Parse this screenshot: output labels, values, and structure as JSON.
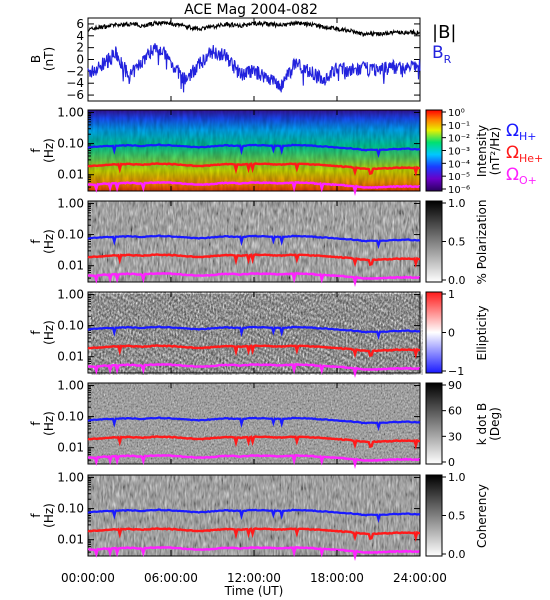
{
  "title": "ACE Mag 2004-082",
  "colors": {
    "bmag": "#000000",
    "br": "#2222dd",
    "h_plus": "#1a1aff",
    "he_plus": "#ff1a1a",
    "o_plus": "#ff22ff"
  },
  "chart_data": [
    {
      "type": "line",
      "panel": "B",
      "ylabel": "B",
      "yunit": "(nT)",
      "ylim": [
        -7,
        7
      ],
      "yticks": [
        "6",
        "4",
        "2",
        "0",
        "−2",
        "−4",
        "−6"
      ],
      "series": [
        {
          "name": "|B|",
          "x_hours": [
            0,
            1,
            2,
            3,
            4,
            5,
            6,
            7,
            8,
            9,
            10,
            11,
            12,
            13,
            14,
            15,
            16,
            17,
            18,
            19,
            20,
            21,
            22,
            23,
            24
          ],
          "values": [
            5.0,
            5.5,
            5.8,
            6.0,
            5.7,
            6.2,
            6.0,
            5.6,
            5.2,
            5.5,
            6.0,
            5.7,
            6.1,
            6.0,
            5.7,
            6.2,
            5.9,
            5.5,
            5.2,
            4.8,
            4.2,
            4.3,
            4.5,
            4.6,
            4.5
          ]
        },
        {
          "name": "B_R",
          "x_hours": [
            0,
            1,
            2,
            3,
            4,
            5,
            6,
            7,
            8,
            9,
            10,
            11,
            12,
            13,
            14,
            15,
            16,
            17,
            18,
            19,
            20,
            21,
            22,
            23,
            24
          ],
          "values": [
            -2.5,
            -1.0,
            1.0,
            -3.0,
            0.0,
            2.5,
            -0.5,
            -3.5,
            -1.0,
            1.5,
            0.5,
            -2.5,
            -2.0,
            -3.0,
            -4.5,
            -0.5,
            -2.0,
            -3.5,
            -1.5,
            -2.0,
            -1.5,
            -1.8,
            -1.2,
            -1.5,
            -1.0
          ]
        }
      ]
    },
    {
      "type": "heatmap",
      "panel": "intensity",
      "ylabel": "f",
      "yunit": "(Hz)",
      "yscale": "log",
      "ylim": [
        0.003,
        1.2
      ],
      "yticks": [
        "1.00",
        "0.10",
        "0.01"
      ],
      "colorbar": {
        "label": "Intensity",
        "unit": "(nT²/Hz)",
        "scale": "log",
        "ticks": [
          "10⁰",
          "10⁻¹",
          "10⁻²",
          "10⁻³",
          "10⁻⁴",
          "10⁻⁵",
          "10⁻⁶"
        ]
      }
    },
    {
      "type": "heatmap",
      "panel": "polarization",
      "ylabel": "f",
      "yunit": "(Hz)",
      "yscale": "log",
      "colorbar": {
        "label": "% Polarization",
        "ticks": [
          "1.0",
          "0.5",
          "0.0"
        ]
      }
    },
    {
      "type": "heatmap",
      "panel": "ellipticity",
      "ylabel": "f",
      "yunit": "(Hz)",
      "yscale": "log",
      "colorbar": {
        "label": "Ellipticity",
        "ticks": [
          "1",
          "0",
          "−1"
        ]
      }
    },
    {
      "type": "heatmap",
      "panel": "kdotb",
      "ylabel": "f",
      "yunit": "(Hz)",
      "yscale": "log",
      "colorbar": {
        "label": "k dot B",
        "unit": "(Deg)",
        "ticks": [
          "90",
          "60",
          "30",
          "0"
        ]
      }
    },
    {
      "type": "heatmap",
      "panel": "coherency",
      "ylabel": "f",
      "yunit": "(Hz)",
      "yscale": "log",
      "colorbar": {
        "label": "Coherency",
        "ticks": [
          "1.0",
          "0.5",
          "0.0"
        ]
      }
    }
  ],
  "gyrofrequency": {
    "legend": [
      {
        "symbol": "Ω",
        "sub": "H+"
      },
      {
        "symbol": "Ω",
        "sub": "He+"
      },
      {
        "symbol": "Ω",
        "sub": "O+"
      }
    ],
    "x_hours": [
      0,
      1,
      2,
      3,
      4,
      5,
      6,
      7,
      8,
      9,
      10,
      11,
      12,
      13,
      14,
      15,
      16,
      17,
      18,
      19,
      20,
      21,
      22,
      23,
      24
    ],
    "h_plus_hz": [
      0.075,
      0.081,
      0.085,
      0.088,
      0.084,
      0.091,
      0.088,
      0.082,
      0.076,
      0.081,
      0.088,
      0.084,
      0.09,
      0.088,
      0.084,
      0.091,
      0.087,
      0.081,
      0.076,
      0.07,
      0.062,
      0.063,
      0.066,
      0.068,
      0.066
    ]
  },
  "xaxis": {
    "label": "Time (UT)",
    "ticks": [
      "00:00:00",
      "06:00:00",
      "12:00:00",
      "18:00:00",
      "24:00:00"
    ],
    "range_hours": [
      0,
      24
    ]
  },
  "bpanel_labels": {
    "bmag": "|B|",
    "br_main": "B",
    "br_sub": "R"
  }
}
